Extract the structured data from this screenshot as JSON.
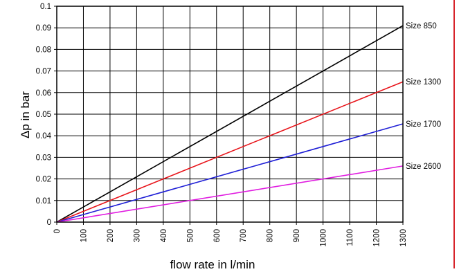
{
  "chart_data": {
    "type": "line",
    "title": "",
    "xlabel": "flow rate in l/min",
    "ylabel": "Δp in bar",
    "xlim": [
      0,
      1300
    ],
    "ylim": [
      0,
      0.1
    ],
    "x_ticks": [
      "0",
      "100",
      "200",
      "300",
      "400",
      "500",
      "600",
      "700",
      "800",
      "900",
      "1000",
      "1100",
      "1200",
      "1300"
    ],
    "y_ticks": [
      "0",
      "0.01",
      "0.02",
      "0.03",
      "0.04",
      "0.05",
      "0.06",
      "0.07",
      "0.08",
      "0.09",
      "0.1"
    ],
    "grid": true,
    "legend": "none (series labelled at right end of lines)",
    "series": [
      {
        "name": "Size 850",
        "color": "#000000",
        "x": [
          0,
          1300
        ],
        "values": [
          0,
          0.091
        ]
      },
      {
        "name": "Size 1300",
        "color": "#e8141a",
        "x": [
          0,
          1300
        ],
        "values": [
          0,
          0.065
        ]
      },
      {
        "name": "Size 1700",
        "color": "#1f1fd6",
        "x": [
          0,
          1300
        ],
        "values": [
          0,
          0.0455
        ]
      },
      {
        "name": "Size 2600",
        "color": "#e01ce0",
        "x": [
          0,
          1300
        ],
        "values": [
          0,
          0.026
        ]
      }
    ]
  },
  "colors": {
    "accent_rule": "#d7242b",
    "grid": "#000000"
  }
}
